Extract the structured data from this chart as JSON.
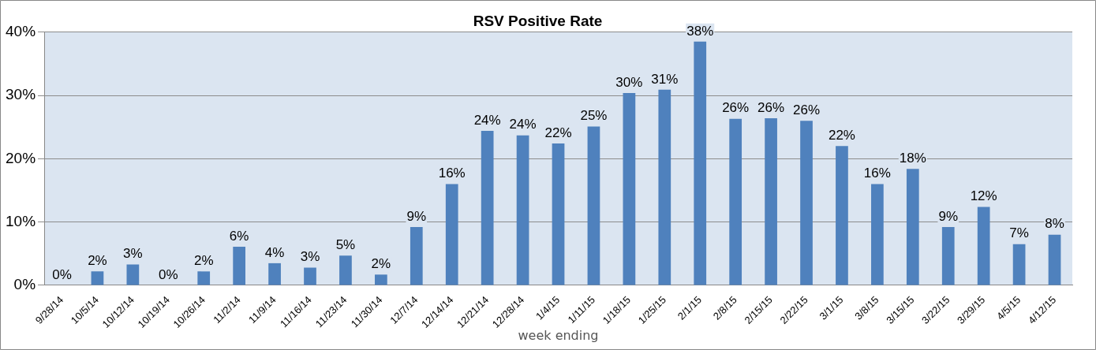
{
  "chart_data": {
    "type": "bar",
    "title": "RSV Positive Rate",
    "xlabel": "week ending",
    "categories": [
      "9/28/14",
      "10/5/14",
      "10/12/14",
      "10/19/14",
      "10/26/14",
      "11/2/14",
      "11/9/14",
      "11/16/14",
      "11/23/14",
      "11/30/14",
      "12/7/14",
      "12/14/14",
      "12/21/14",
      "12/28/14",
      "1/4/15",
      "1/11/15",
      "1/18/15",
      "1/25/15",
      "2/1/15",
      "2/8/15",
      "2/15/15",
      "2/22/15",
      "3/1/15",
      "3/8/15",
      "3/15/15",
      "3/22/15",
      "3/29/15",
      "4/5/15",
      "4/12/15"
    ],
    "values": [
      0,
      2.2,
      3.3,
      0,
      2.2,
      6.1,
      3.5,
      2.8,
      4.7,
      1.7,
      9.2,
      16.0,
      24.4,
      23.7,
      22.4,
      25.1,
      30.4,
      30.9,
      38.5,
      26.3,
      26.4,
      26.0,
      22.0,
      16.0,
      18.4,
      9.2,
      12.4,
      6.5,
      8.0
    ],
    "value_labels": [
      "0%",
      "2%",
      "3%",
      "0%",
      "2%",
      "6%",
      "4%",
      "3%",
      "5%",
      "2%",
      "9%",
      "16%",
      "24%",
      "24%",
      "22%",
      "25%",
      "30%",
      "31%",
      "38%",
      "26%",
      "26%",
      "26%",
      "22%",
      "16%",
      "18%",
      "9%",
      "12%",
      "7%",
      "8%"
    ],
    "color": "#4f81bd",
    "ylim": [
      0,
      40
    ],
    "yticks": [
      {
        "value": 0,
        "label": "0%"
      },
      {
        "value": 10,
        "label": "10%"
      },
      {
        "value": 20,
        "label": "20%"
      },
      {
        "value": 30,
        "label": "30%"
      },
      {
        "value": 40,
        "label": "40%"
      }
    ],
    "grid": "y"
  }
}
